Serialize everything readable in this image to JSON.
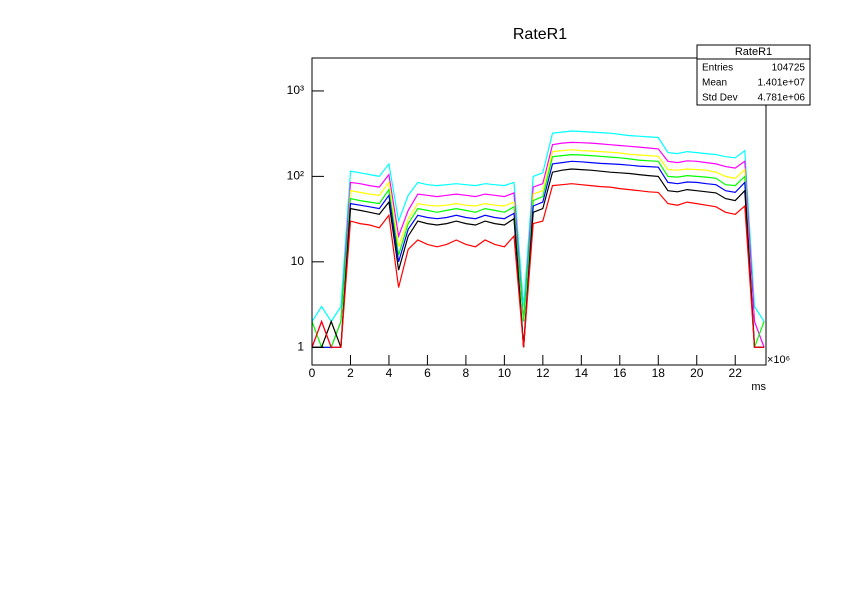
{
  "chart_data": {
    "type": "line",
    "title": "RateR1",
    "x_label": "ms",
    "x_multiplier": "×10⁶",
    "log_y": true,
    "xlim": [
      0,
      23.6
    ],
    "ylim": [
      0.62,
      2430
    ],
    "xticks": [
      0,
      2,
      4,
      6,
      8,
      10,
      12,
      14,
      16,
      18,
      20,
      22
    ],
    "yticks": [
      1,
      10,
      {
        "value": 100,
        "label": "10²"
      },
      {
        "value": 1000,
        "label": "10³"
      }
    ],
    "x": [
      0,
      0.5,
      1,
      1.5,
      2,
      2.5,
      3,
      3.5,
      4,
      4.5,
      5,
      5.5,
      6,
      6.5,
      7,
      7.5,
      8,
      8.5,
      9,
      9.5,
      10,
      10.5,
      11,
      11.5,
      12,
      12.5,
      13,
      13.5,
      14,
      14.5,
      15,
      15.5,
      16,
      16.5,
      17,
      17.5,
      18,
      18.5,
      19,
      19.5,
      20,
      20.5,
      21,
      21.5,
      22,
      22.5,
      23,
      23.5
    ],
    "series": [
      {
        "color": "#00ffff",
        "values": [
          2,
          3,
          2,
          3,
          115,
          110,
          105,
          100,
          140,
          30,
          60,
          85,
          80,
          78,
          80,
          82,
          80,
          78,
          82,
          80,
          78,
          85,
          3,
          100,
          110,
          320,
          330,
          340,
          335,
          330,
          325,
          320,
          310,
          300,
          295,
          290,
          285,
          190,
          185,
          195,
          190,
          185,
          180,
          170,
          165,
          200,
          3,
          2
        ]
      },
      {
        "color": "#ff00ff",
        "values": [
          1,
          2,
          1,
          2,
          85,
          82,
          78,
          75,
          105,
          20,
          40,
          62,
          60,
          58,
          60,
          62,
          60,
          58,
          62,
          60,
          58,
          64,
          2,
          75,
          82,
          235,
          245,
          250,
          248,
          245,
          240,
          235,
          230,
          225,
          220,
          215,
          210,
          150,
          145,
          152,
          150,
          145,
          140,
          130,
          125,
          150,
          2,
          1
        ]
      },
      {
        "color": "#ffff00",
        "values": [
          1,
          1,
          2,
          1,
          68,
          65,
          62,
          60,
          85,
          15,
          32,
          48,
          46,
          45,
          46,
          48,
          46,
          45,
          48,
          46,
          45,
          50,
          1,
          62,
          68,
          195,
          200,
          205,
          200,
          198,
          195,
          192,
          188,
          182,
          178,
          175,
          172,
          120,
          118,
          122,
          120,
          118,
          112,
          100,
          95,
          120,
          1,
          1
        ]
      },
      {
        "color": "#00ff00",
        "values": [
          2,
          1,
          1,
          2,
          55,
          52,
          50,
          48,
          70,
          12,
          28,
          42,
          40,
          38,
          40,
          42,
          40,
          38,
          42,
          40,
          38,
          44,
          2,
          52,
          58,
          170,
          175,
          180,
          178,
          175,
          172,
          168,
          165,
          160,
          155,
          152,
          150,
          100,
          98,
          102,
          100,
          98,
          95,
          80,
          78,
          100,
          1,
          2
        ]
      },
      {
        "color": "#0000ff",
        "values": [
          1,
          1,
          1,
          1,
          48,
          46,
          44,
          42,
          60,
          10,
          24,
          35,
          33,
          32,
          33,
          35,
          33,
          32,
          35,
          33,
          32,
          37,
          1,
          45,
          50,
          140,
          145,
          150,
          148,
          145,
          142,
          140,
          138,
          135,
          132,
          130,
          128,
          85,
          82,
          86,
          85,
          82,
          80,
          68,
          65,
          85,
          1,
          1
        ]
      },
      {
        "color": "#000000",
        "values": [
          1,
          1,
          2,
          1,
          42,
          40,
          38,
          36,
          50,
          8,
          20,
          30,
          28,
          27,
          28,
          30,
          28,
          27,
          30,
          28,
          27,
          32,
          1,
          38,
          42,
          112,
          118,
          122,
          120,
          118,
          115,
          112,
          110,
          108,
          105,
          102,
          100,
          68,
          66,
          70,
          68,
          66,
          64,
          55,
          52,
          68,
          1,
          1
        ]
      },
      {
        "color": "#ff0000",
        "values": [
          1,
          2,
          1,
          1,
          30,
          28,
          27,
          25,
          35,
          5,
          14,
          18,
          16,
          15,
          16,
          18,
          16,
          15,
          18,
          16,
          15,
          20,
          1,
          28,
          30,
          78,
          80,
          82,
          80,
          78,
          76,
          75,
          72,
          70,
          68,
          66,
          65,
          48,
          46,
          50,
          48,
          46,
          44,
          38,
          36,
          45,
          1,
          1
        ]
      }
    ],
    "stats": {
      "title": "RateR1",
      "rows": [
        [
          "Entries",
          "104725"
        ],
        [
          "Mean",
          "1.401e+07"
        ],
        [
          "Std Dev",
          "4.781e+06"
        ]
      ]
    }
  }
}
